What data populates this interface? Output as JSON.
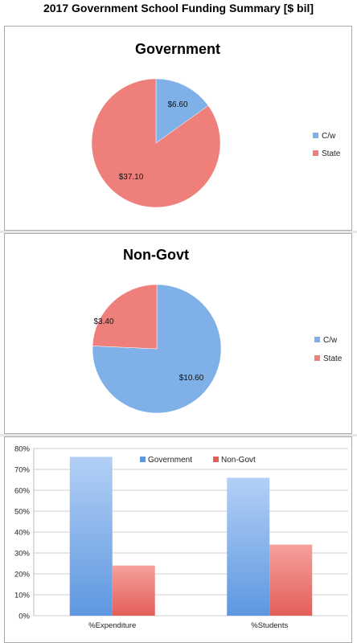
{
  "page_title": "2017 Government School Funding Summary [$ bil]",
  "colors": {
    "blue": "#5b9bd5",
    "blue_light": "#a8c8f0",
    "red": "#e8605a",
    "red_light": "#f5a9a4"
  },
  "chart_data": [
    {
      "type": "pie",
      "title": "Government",
      "categories": [
        "C/w",
        "State"
      ],
      "values": [
        6.6,
        37.1
      ],
      "labels": [
        "$6.60",
        "$37.10"
      ],
      "colors": [
        "#7fb0e8",
        "#ef7f7a"
      ],
      "legend": "right"
    },
    {
      "type": "pie",
      "title": "Non-Govt",
      "categories": [
        "C/w",
        "State"
      ],
      "values": [
        10.6,
        3.4
      ],
      "labels": [
        "$10.60",
        "$3.40"
      ],
      "colors": [
        "#7fb0e8",
        "#ef7f7a"
      ],
      "legend": "right"
    },
    {
      "type": "bar",
      "categories": [
        "%Expenditure",
        "%Students"
      ],
      "series": [
        {
          "name": "Government",
          "values": [
            0.76,
            0.66
          ]
        },
        {
          "name": "Non-Govt",
          "values": [
            0.24,
            0.34
          ]
        }
      ],
      "ylim": [
        0,
        0.8
      ],
      "yticks": [
        "0%",
        "10%",
        "20%",
        "30%",
        "40%",
        "50%",
        "60%",
        "70%",
        "80%"
      ],
      "grid": true,
      "legend": "top-center"
    }
  ]
}
